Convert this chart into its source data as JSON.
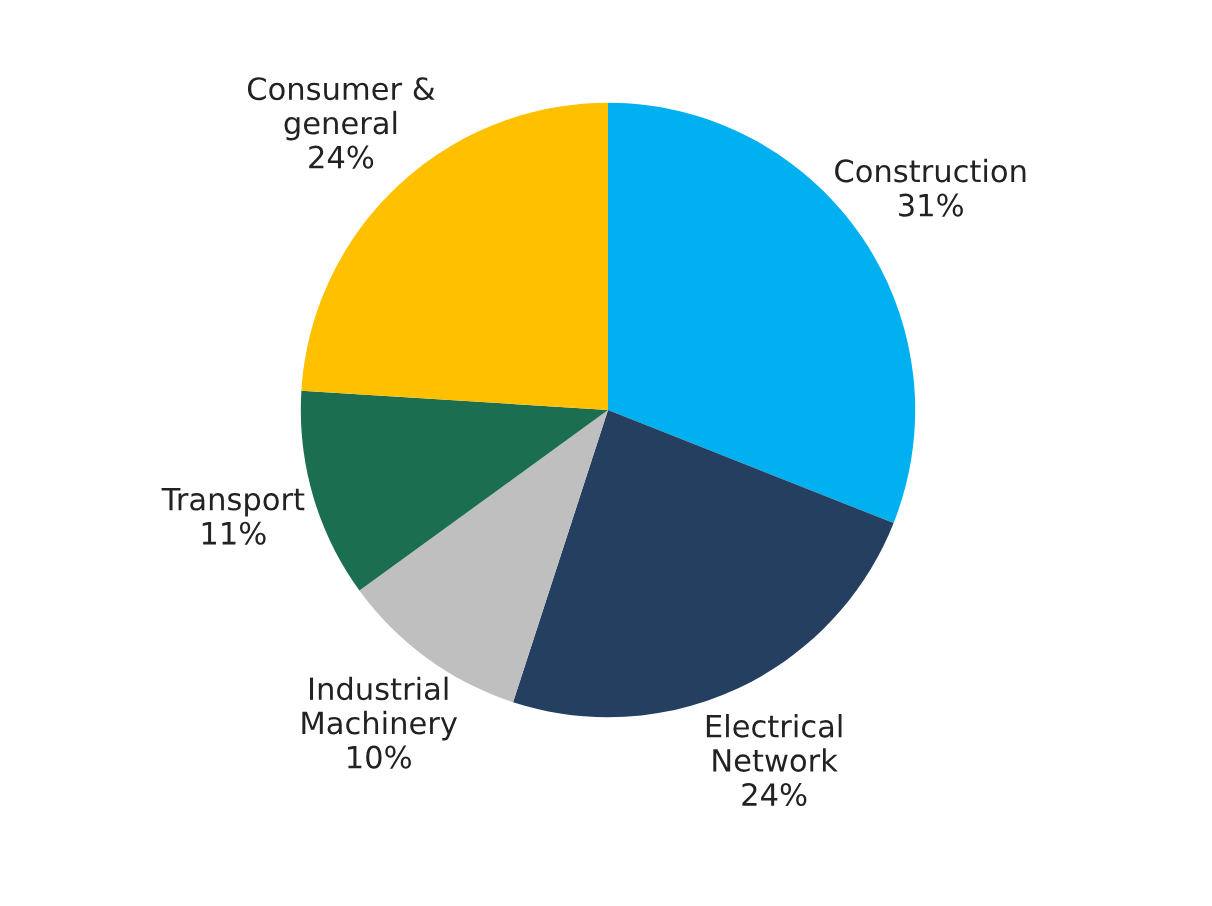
{
  "chart_data": {
    "type": "pie",
    "categories": [
      "Construction",
      "Electrical\nNetwork",
      "Industrial\nMachinery",
      "Transport",
      "Consumer &\ngeneral"
    ],
    "values": [
      31,
      24,
      10,
      11,
      24
    ],
    "value_labels": [
      "31%",
      "24%",
      "10%",
      "11%",
      "24%"
    ],
    "colors": [
      "#00b0f0",
      "#243f60",
      "#bfbfbf",
      "#1b6e50",
      "#ffc000"
    ],
    "legend": false
  }
}
